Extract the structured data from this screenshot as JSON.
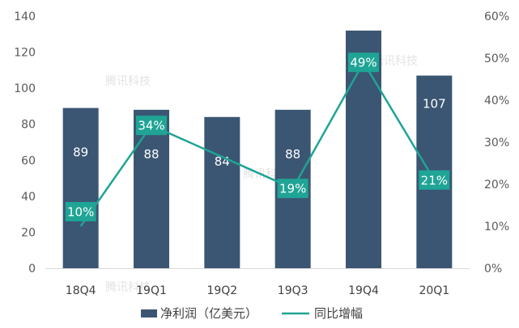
{
  "chart_data": {
    "type": "bar",
    "categories": [
      "18Q4",
      "19Q1",
      "19Q2",
      "19Q3",
      "19Q4",
      "20Q1"
    ],
    "series": [
      {
        "name": "净利润（亿美元）",
        "type": "bar",
        "axis": "left",
        "values": [
          89,
          88,
          84,
          88,
          132,
          107
        ],
        "labels": [
          "89",
          "88",
          "84",
          "88",
          "",
          "107"
        ],
        "color": "#3b5673"
      },
      {
        "name": "同比增幅",
        "type": "line",
        "axis": "right",
        "values": [
          10,
          34,
          null,
          19,
          49,
          21
        ],
        "labels": [
          "10%",
          "34%",
          "",
          "19%",
          "49%",
          "21%"
        ],
        "color": "#1fa495"
      }
    ],
    "ylim_left": [
      0,
      140
    ],
    "yticks_left": [
      "0",
      "20",
      "40",
      "60",
      "80",
      "100",
      "120",
      "140"
    ],
    "ylim_right": [
      0,
      60
    ],
    "yticks_right": [
      "0%",
      "10%",
      "20%",
      "30%",
      "40%",
      "50%",
      "60%"
    ],
    "grid": false,
    "legend_position": "bottom",
    "watermark": "腾讯科技"
  }
}
